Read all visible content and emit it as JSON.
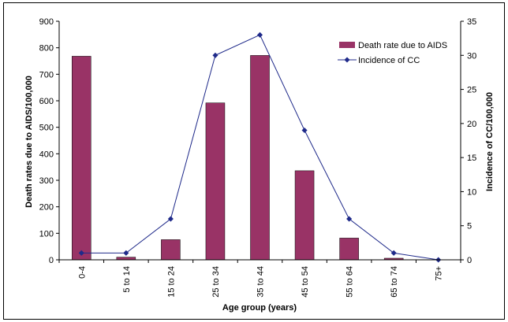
{
  "chart_data": {
    "type": "bar",
    "categories": [
      "0-4",
      "5 to 14",
      "15 to 24",
      "25 to 34",
      "35 to 44",
      "45 to 54",
      "55 to 64",
      "65 to 74",
      "75+"
    ],
    "series": [
      {
        "name": "Death rate due to AIDS",
        "type": "bar",
        "axis": "left",
        "color": "#993366",
        "values": [
          768,
          10,
          76,
          592,
          771,
          336,
          82,
          6,
          0
        ]
      },
      {
        "name": "Incidence of CC",
        "type": "line",
        "axis": "right",
        "color": "#1f2a8a",
        "marker": "diamond",
        "values": [
          1,
          1,
          6,
          30,
          33,
          19,
          6,
          1,
          0
        ]
      }
    ],
    "xlabel": "Age group (years)",
    "ylabel": "Death rates due to AIDS/100,000",
    "y2label": "Incidence of CC/100,000",
    "ylim": [
      0,
      900
    ],
    "yticks": [
      "0",
      "100",
      "200",
      "300",
      "400",
      "500",
      "600",
      "700",
      "800",
      "900"
    ],
    "y2lim": [
      0,
      35
    ],
    "y2ticks": [
      "0",
      "5",
      "10",
      "15",
      "20",
      "25",
      "30",
      "35"
    ],
    "grid": false,
    "legend": "top-right"
  }
}
